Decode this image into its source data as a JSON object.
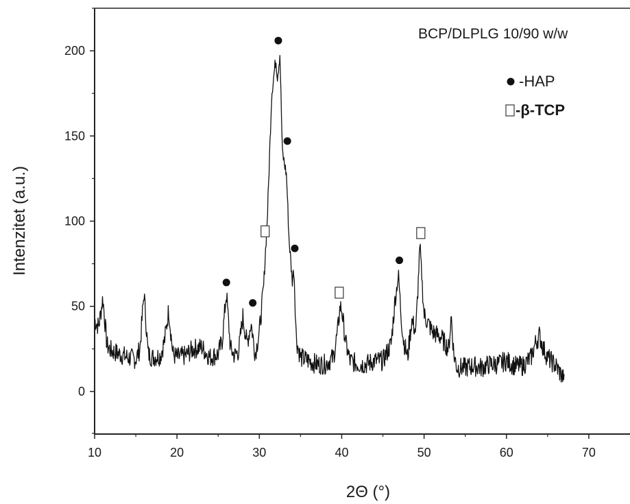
{
  "chart_data": {
    "type": "line",
    "title": "",
    "annotation": "BCP/DLPLG 10/90 w/w",
    "xlabel": "2Θ (°)",
    "ylabel": "Intenzitet (a.u.)",
    "xlim": [
      10,
      75
    ],
    "ylim": [
      -25,
      225
    ],
    "xticks": [
      "10",
      "20",
      "30",
      "40",
      "50",
      "60",
      "70"
    ],
    "yticks": [
      "0",
      "50",
      "100",
      "150",
      "200"
    ],
    "grid": false,
    "legend": {
      "placement": "top-right",
      "entries": [
        {
          "symbol": "filled-circle",
          "label": "-HAP"
        },
        {
          "symbol": "open-square",
          "label": "-β-TCP"
        }
      ]
    },
    "series": [
      {
        "values_description": "XRD pattern",
        "x": [
          10.0,
          10.5,
          11.0,
          11.5,
          12.0,
          13.0,
          14.0,
          15.0,
          15.5,
          16.0,
          16.5,
          17.0,
          18.0,
          18.5,
          19.0,
          19.5,
          20.0,
          21.0,
          22.0,
          23.0,
          24.0,
          25.0,
          25.5,
          26.0,
          26.5,
          27.0,
          27.5,
          28.0,
          28.5,
          29.0,
          29.5,
          30.0,
          30.5,
          31.0,
          31.5,
          32.0,
          32.2,
          32.5,
          32.8,
          33.0,
          33.3,
          33.6,
          34.0,
          34.2,
          34.5,
          35.0,
          36.0,
          37.0,
          38.0,
          39.0,
          39.5,
          39.8,
          40.0,
          40.5,
          41.0,
          42.0,
          43.0,
          44.0,
          45.0,
          46.0,
          46.5,
          46.9,
          47.2,
          47.5,
          48.0,
          48.5,
          49.0,
          49.5,
          50.0,
          50.5,
          51.0,
          52.0,
          53.0,
          53.3,
          53.6,
          54.0,
          55.0,
          56.0,
          57.0,
          58.0,
          59.0,
          60.0,
          61.0,
          62.0,
          63.0,
          63.5,
          64.0,
          64.5,
          65.0,
          66.0,
          67.0
        ],
        "y": [
          42,
          38,
          55,
          27,
          24,
          22,
          20,
          19,
          25,
          58,
          22,
          20,
          21,
          30,
          48,
          22,
          20,
          21,
          25,
          26,
          20,
          22,
          30,
          58,
          25,
          21,
          24,
          44,
          28,
          40,
          22,
          35,
          60,
          105,
          175,
          195,
          185,
          198,
          140,
          135,
          127,
          90,
          65,
          72,
          30,
          20,
          18,
          16,
          16,
          20,
          35,
          50,
          48,
          28,
          18,
          16,
          16,
          18,
          18,
          28,
          55,
          68,
          45,
          30,
          20,
          42,
          35,
          86,
          45,
          40,
          35,
          32,
          25,
          45,
          22,
          14,
          14,
          15,
          14,
          16,
          16,
          18,
          15,
          15,
          20,
          28,
          33,
          25,
          20,
          15,
          7
        ]
      }
    ],
    "markers": [
      {
        "symbol": "filled-circle",
        "x": 32.3,
        "y": 206
      },
      {
        "symbol": "filled-circle",
        "x": 33.4,
        "y": 147
      },
      {
        "symbol": "filled-circle",
        "x": 34.3,
        "y": 84
      },
      {
        "symbol": "filled-circle",
        "x": 26.0,
        "y": 64
      },
      {
        "symbol": "filled-circle",
        "x": 29.2,
        "y": 52
      },
      {
        "symbol": "filled-circle",
        "x": 47.0,
        "y": 77
      },
      {
        "symbol": "open-square",
        "x": 30.7,
        "y": 94
      },
      {
        "symbol": "open-square",
        "x": 39.7,
        "y": 58
      },
      {
        "symbol": "open-square",
        "x": 49.6,
        "y": 93
      }
    ]
  },
  "colors": {
    "line": "#111111",
    "axis": "#222222",
    "background": "#ffffff"
  }
}
